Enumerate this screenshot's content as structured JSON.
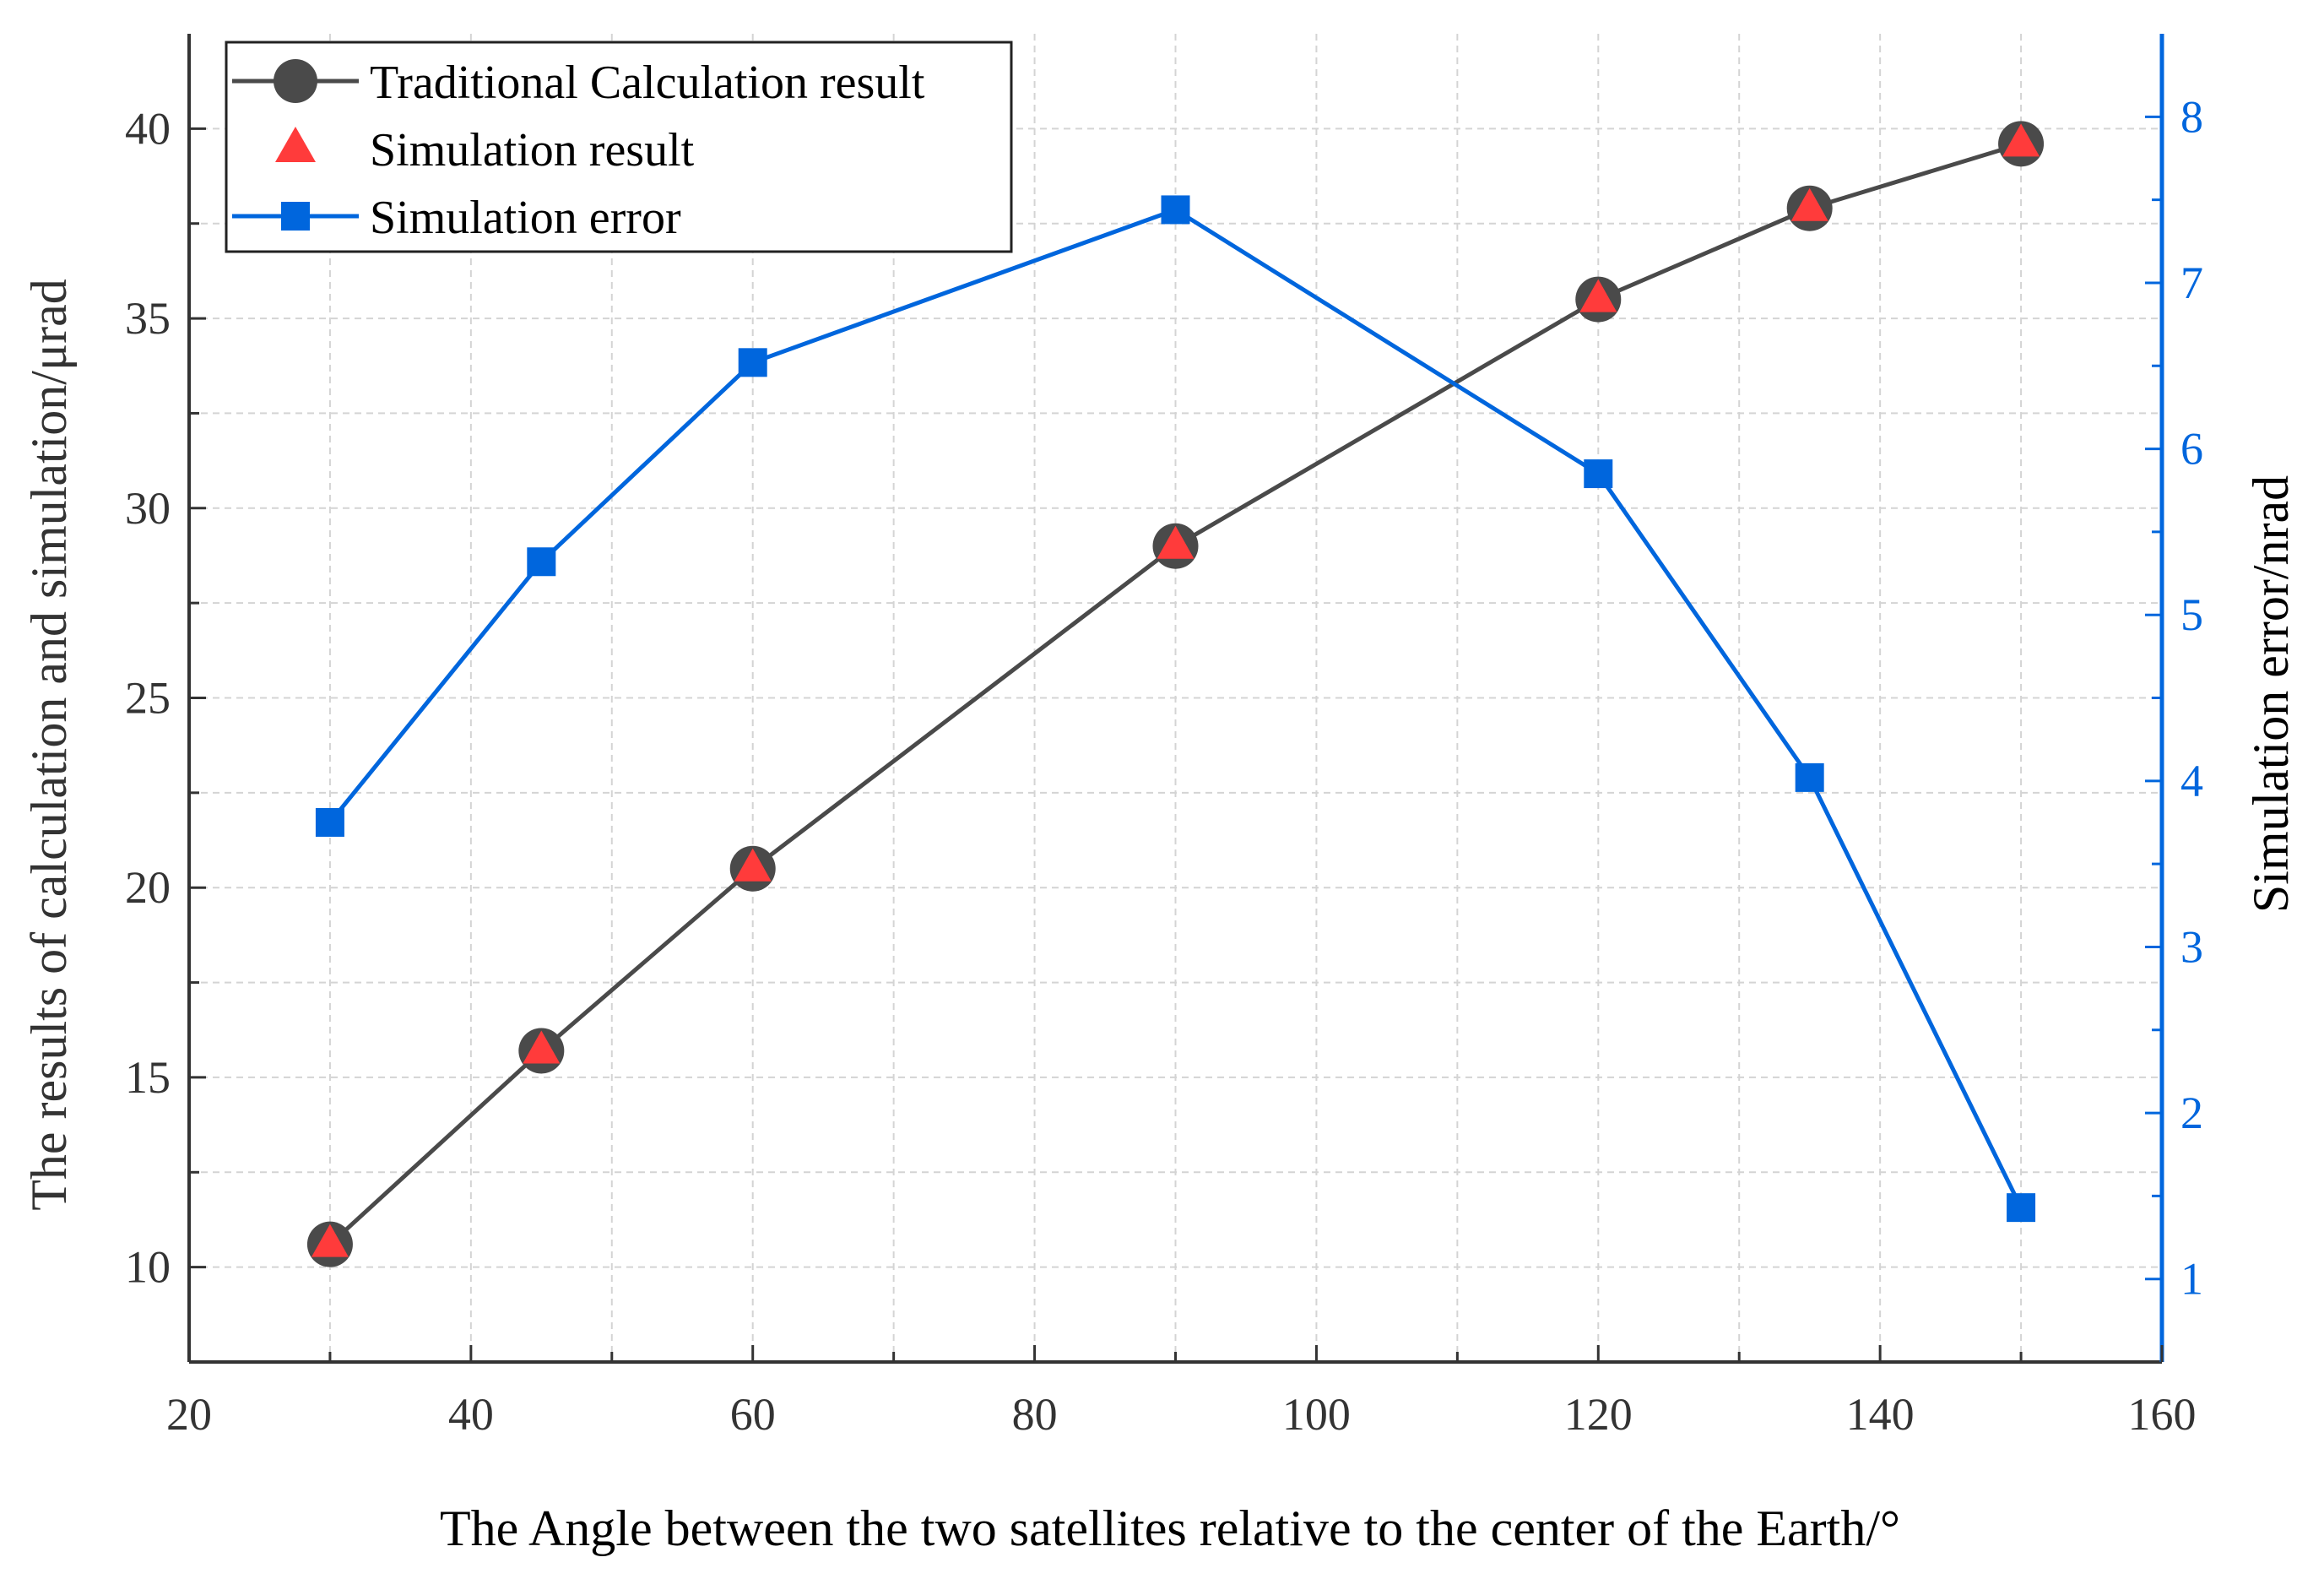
{
  "chart_data": {
    "type": "line",
    "xlabel": "The Angle between the two satellites relative to the center of the Earth/°",
    "ylabel_left": "The results of calculation and simulation/μrad",
    "ylabel_right": "Simulation error/nrad",
    "xlim": [
      20,
      160
    ],
    "ylim_left": [
      7.5,
      42.5
    ],
    "ylim_right": [
      0.5,
      8.5
    ],
    "xticks": [
      20,
      40,
      60,
      80,
      100,
      120,
      140,
      160
    ],
    "yticks_left": [
      10,
      15,
      20,
      25,
      30,
      35,
      40
    ],
    "yticks_right": [
      1,
      2,
      3,
      4,
      5,
      6,
      7,
      8
    ],
    "grid": true,
    "legend_position": "top-left",
    "colors": {
      "traditional": "#4a4a4a",
      "simulation": "#ff3b3b",
      "error": "#0066dd",
      "axis_left": "#333333",
      "axis_right": "#0066dd"
    },
    "series": [
      {
        "name": "Traditional Calculation result",
        "axis": "left",
        "marker": "circle",
        "line": true,
        "x": [
          30,
          45,
          60,
          90,
          120,
          135,
          150
        ],
        "values": [
          10.6,
          15.7,
          20.5,
          29.0,
          35.5,
          37.9,
          39.6
        ]
      },
      {
        "name": "Simulation result",
        "axis": "left",
        "marker": "triangle",
        "line": false,
        "x": [
          30,
          45,
          60,
          90,
          120,
          135,
          150
        ],
        "values": [
          10.6,
          15.7,
          20.5,
          29.0,
          35.5,
          37.9,
          39.6
        ]
      },
      {
        "name": "Simulation error",
        "axis": "right",
        "marker": "square",
        "line": true,
        "x": [
          30,
          45,
          60,
          90,
          120,
          135,
          150
        ],
        "values": [
          3.75,
          5.32,
          6.52,
          7.44,
          5.85,
          4.02,
          1.43
        ]
      }
    ]
  }
}
